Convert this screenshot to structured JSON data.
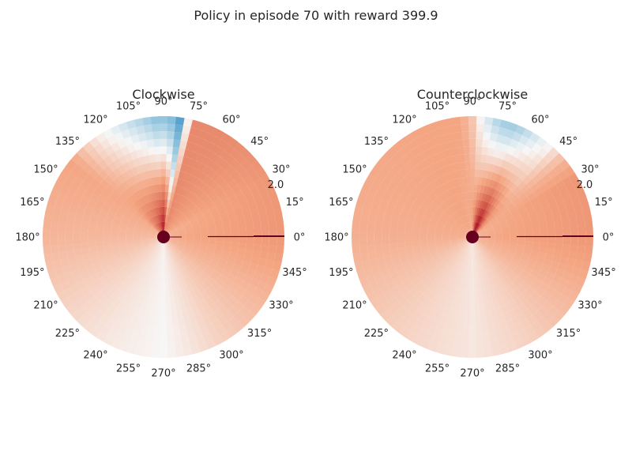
{
  "suptitle": "Policy in episode 70 with reward 399.9",
  "chart_data": [
    {
      "type": "heatmap",
      "projection": "polar",
      "title": "Clockwise",
      "colormap": "RdBu_r",
      "theta_ticks_deg": [
        0,
        15,
        30,
        45,
        60,
        75,
        90,
        105,
        120,
        135,
        150,
        165,
        180,
        195,
        210,
        225,
        240,
        255,
        270,
        285,
        300,
        315,
        330,
        345
      ],
      "r_tick_labels": [
        "2.0"
      ],
      "grid": false,
      "policy_field": {
        "angle_deg": [
          0,
          30,
          60,
          75,
          82,
          88,
          92,
          100,
          110,
          125,
          140,
          180,
          240,
          270,
          300,
          330,
          360
        ],
        "center_value": [
          0.22,
          0.2,
          0.28,
          0.35,
          0.5,
          0.95,
          0.9,
          0.75,
          0.6,
          0.45,
          0.22,
          0.18,
          0.08,
          0.02,
          0.12,
          0.2,
          0.22
        ],
        "edge_value": [
          0.3,
          0.3,
          0.35,
          0.35,
          -0.45,
          -0.25,
          -0.3,
          -0.2,
          -0.1,
          0.05,
          0.25,
          0.2,
          0.05,
          0.0,
          0.12,
          0.2,
          0.3
        ]
      }
    },
    {
      "type": "heatmap",
      "projection": "polar",
      "title": "Counterclockwise",
      "colormap": "RdBu_r",
      "theta_ticks_deg": [
        0,
        15,
        30,
        45,
        60,
        75,
        90,
        105,
        120,
        135,
        150,
        165,
        180,
        195,
        210,
        225,
        240,
        255,
        270,
        285,
        300,
        315,
        330,
        345
      ],
      "r_tick_labels": [
        "2.0"
      ],
      "grid": false,
      "policy_field": {
        "angle_deg": [
          0,
          30,
          40,
          50,
          58,
          66,
          72,
          80,
          86,
          90,
          96,
          110,
          180,
          240,
          270,
          300,
          330,
          360
        ],
        "center_value": [
          0.22,
          0.2,
          0.25,
          0.45,
          0.7,
          0.95,
          0.95,
          0.7,
          0.45,
          0.3,
          0.22,
          0.25,
          0.22,
          0.1,
          0.05,
          0.12,
          0.2,
          0.22
        ],
        "edge_value": [
          0.3,
          0.3,
          0.2,
          0.0,
          -0.1,
          -0.2,
          -0.25,
          -0.15,
          0.0,
          0.15,
          0.25,
          0.25,
          0.22,
          0.1,
          0.05,
          0.12,
          0.2,
          0.3
        ]
      }
    }
  ]
}
